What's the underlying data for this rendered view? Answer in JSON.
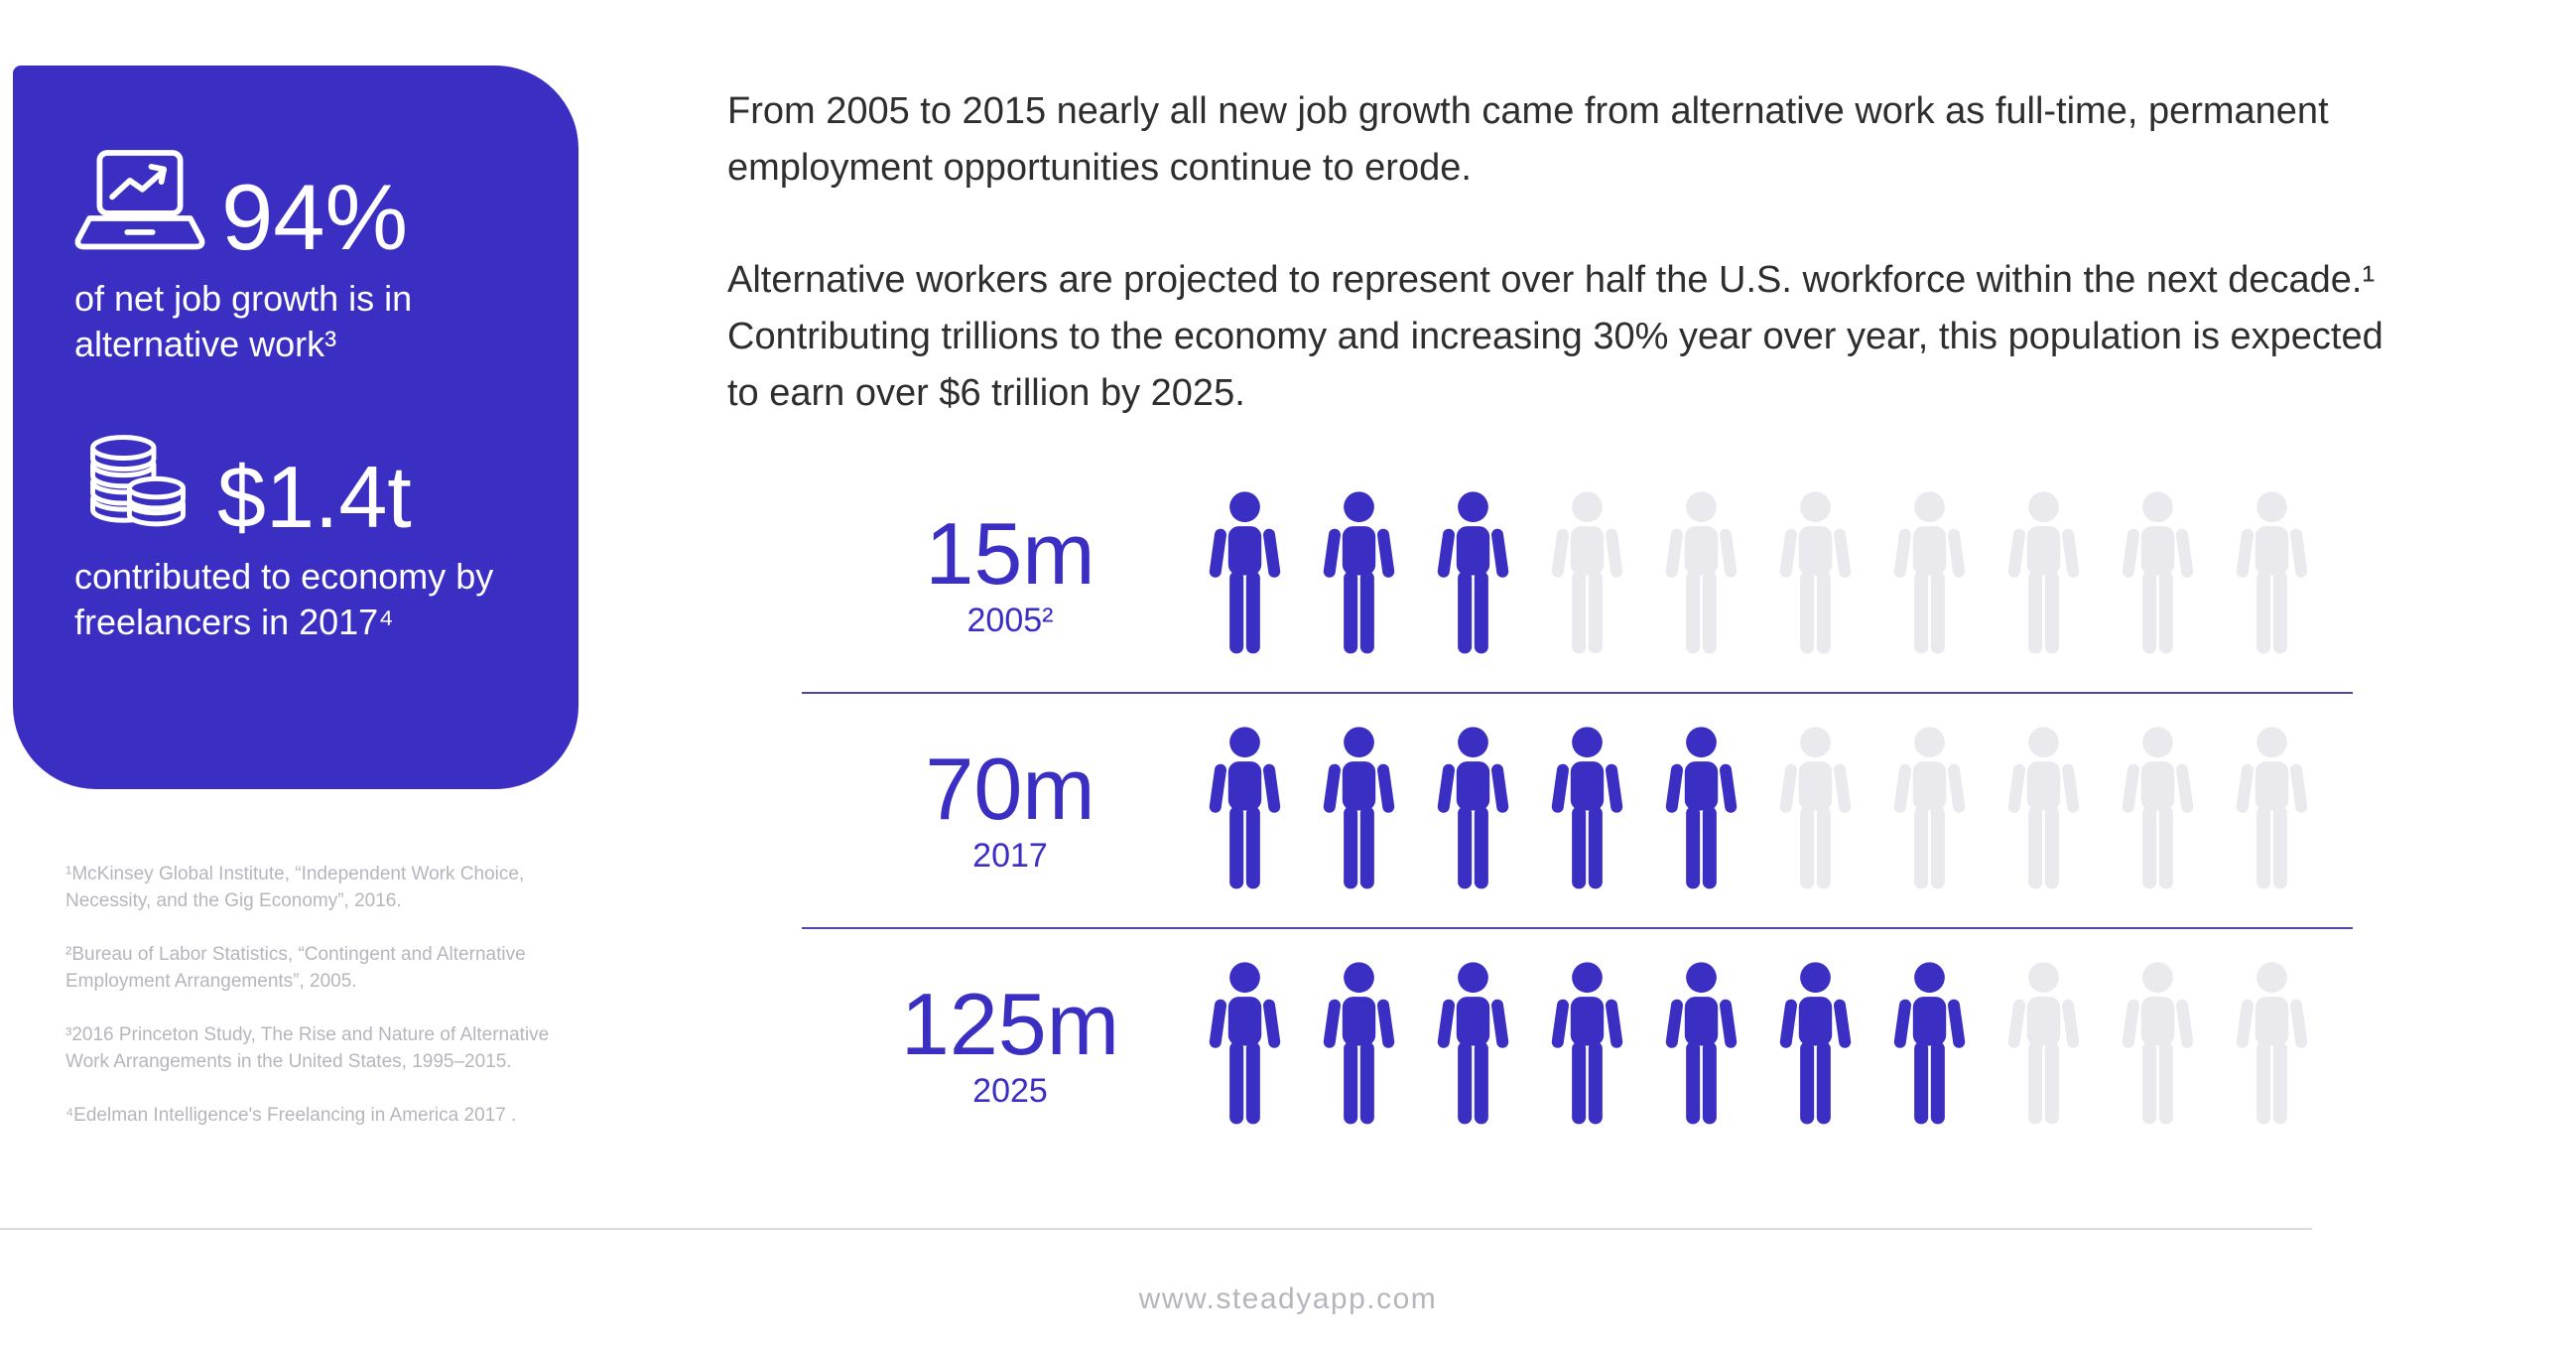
{
  "theme": {
    "accent": "#3B2FC3",
    "empty": "#E9E9EE",
    "ink": "#2E2E30",
    "muted": "#B5B5BE",
    "row_divider": "#4F46B0",
    "footer_divider": "#DADAE0"
  },
  "sidebar": {
    "stats": [
      {
        "icon": "laptop-trend-chart-icon",
        "value": "94%",
        "label": "of net job growth is in alternative work³"
      },
      {
        "icon": "coin-stack-icon",
        "value": "$1.4t",
        "label": "contributed to economy by freelancers in 2017⁴"
      }
    ],
    "footnotes": [
      "¹McKinsey Global Institute, “Independent Work Choice, Necessity, and the Gig Economy”, 2016.",
      "²Bureau of Labor Statistics, “Contingent and Alternative Employment Arrangements”, 2005.",
      "³2016 Princeton Study, The Rise and Nature of Alternative Work Arrangements in the United States, 1995–2015.",
      "⁴Edelman Intelligence's Freelancing in America 2017 ."
    ]
  },
  "main": {
    "paragraph1": "From 2005 to 2015 nearly all new job growth came from alternative work as full-time, permanent employment opportunities continue to erode.",
    "paragraph2": "Alternative workers are projected to represent over half the U.S. workforce within the next decade.¹ Contributing trillions to the economy and increasing 30% year over year, this population is expected to earn over $6 trillion by 2025."
  },
  "chart_data": {
    "type": "pictogram",
    "title": "Alternative workers in the U.S. workforce",
    "unit_icon": "person-icon",
    "icons_per_row": 10,
    "filled_color": "#3B2FC3",
    "empty_color": "#E9E9EE",
    "rows": [
      {
        "value_label": "15m",
        "value_millions": 15,
        "year": 2005,
        "year_label": "2005²",
        "filled_icons": 3,
        "total_icons": 10
      },
      {
        "value_label": "70m",
        "value_millions": 70,
        "year": 2017,
        "year_label": "2017",
        "filled_icons": 5,
        "total_icons": 10
      },
      {
        "value_label": "125m",
        "value_millions": 125,
        "year": 2025,
        "year_label": "2025",
        "filled_icons": 7,
        "total_icons": 10
      }
    ]
  },
  "footer": {
    "url": "www.steadyapp.com"
  }
}
